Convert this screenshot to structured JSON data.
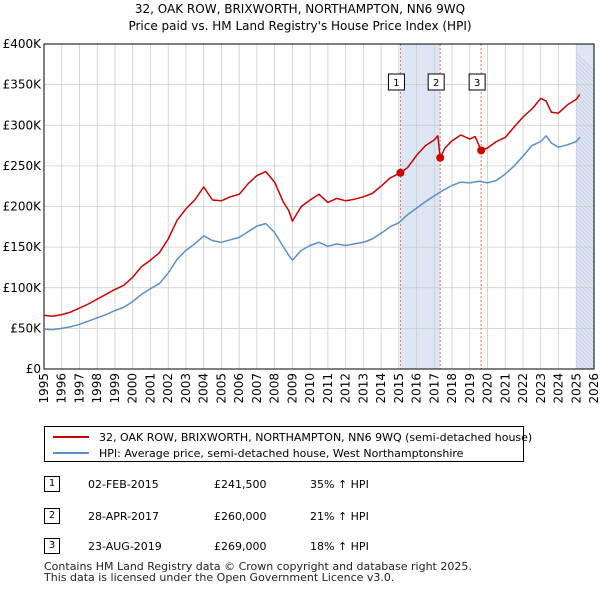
{
  "title_line1": "32, OAK ROW, BRIXWORTH, NORTHAMPTON, NN6 9WQ",
  "title_line2": "Price paid vs. HM Land Registry's House Price Index (HPI)",
  "colors": {
    "property": "#cc0000",
    "hpi": "#5b8fcb",
    "shade": "#dde6f5",
    "grid": "#cccccc",
    "marker_line": "#e86b6b"
  },
  "chart_data": {
    "type": "line",
    "xlim": [
      1995,
      2026
    ],
    "ylim": [
      0,
      400000
    ],
    "x_ticks": [
      1995,
      1996,
      1997,
      1998,
      1999,
      2000,
      2001,
      2002,
      2003,
      2004,
      2005,
      2006,
      2007,
      2008,
      2009,
      2010,
      2011,
      2012,
      2013,
      2014,
      2015,
      2016,
      2017,
      2018,
      2019,
      2020,
      2021,
      2022,
      2023,
      2024,
      2025,
      2026
    ],
    "y_ticks": [
      0,
      50000,
      100000,
      150000,
      200000,
      250000,
      300000,
      350000,
      400000
    ],
    "y_tick_labels": [
      "£0",
      "£50K",
      "£100K",
      "£150K",
      "£200K",
      "£250K",
      "£300K",
      "£350K",
      "£400K"
    ],
    "shaded_ranges": [
      [
        2015.09,
        2017.33
      ],
      [
        2019.64,
        2019.64
      ],
      [
        2025.0,
        2026.0
      ]
    ],
    "series": [
      {
        "name": "32, OAK ROW, BRIXWORTH, NORTHAMPTON, NN6 9WQ (semi-detached house)",
        "color": "#cc0000",
        "x": [
          1995.0,
          1995.5,
          1996.0,
          1996.5,
          1997.0,
          1997.5,
          1998.0,
          1998.5,
          1999.0,
          1999.5,
          2000.0,
          2000.5,
          2001.0,
          2001.5,
          2002.0,
          2002.5,
          2003.0,
          2003.5,
          2004.0,
          2004.5,
          2005.0,
          2005.5,
          2006.0,
          2006.5,
          2007.0,
          2007.5,
          2008.0,
          2008.5,
          2008.8,
          2009.0,
          2009.5,
          2010.0,
          2010.5,
          2011.0,
          2011.5,
          2012.0,
          2012.5,
          2013.0,
          2013.5,
          2014.0,
          2014.5,
          2015.09,
          2015.5,
          2016.0,
          2016.5,
          2017.0,
          2017.2,
          2017.33,
          2017.6,
          2018.0,
          2018.5,
          2019.0,
          2019.3,
          2019.64,
          2020.0,
          2020.5,
          2021.0,
          2021.5,
          2022.0,
          2022.5,
          2023.0,
          2023.3,
          2023.6,
          2024.0,
          2024.5,
          2025.0,
          2025.2
        ],
        "values": [
          66000,
          65000,
          67000,
          70000,
          75000,
          80000,
          86000,
          92000,
          98000,
          103000,
          113000,
          126000,
          134000,
          143000,
          160000,
          183000,
          197000,
          208000,
          224000,
          208000,
          207000,
          212000,
          215000,
          228000,
          238000,
          243000,
          230000,
          205000,
          195000,
          182000,
          200000,
          208000,
          215000,
          205000,
          210000,
          207000,
          209000,
          212000,
          216000,
          225000,
          235000,
          241500,
          248000,
          263000,
          275000,
          282000,
          287000,
          260000,
          272000,
          281000,
          288000,
          283000,
          286000,
          269000,
          272000,
          280000,
          285000,
          298000,
          310000,
          320000,
          333000,
          330000,
          316000,
          315000,
          325000,
          332000,
          338000
        ]
      },
      {
        "name": "HPI: Average price, semi-detached house, West Northamptonshire",
        "color": "#5b8fcb",
        "x": [
          1995.0,
          1995.5,
          1996.0,
          1996.5,
          1997.0,
          1997.5,
          1998.0,
          1998.5,
          1999.0,
          1999.5,
          2000.0,
          2000.5,
          2001.0,
          2001.5,
          2002.0,
          2002.5,
          2003.0,
          2003.5,
          2004.0,
          2004.5,
          2005.0,
          2005.5,
          2006.0,
          2006.5,
          2007.0,
          2007.5,
          2008.0,
          2008.5,
          2008.8,
          2009.0,
          2009.5,
          2010.0,
          2010.5,
          2011.0,
          2011.5,
          2012.0,
          2012.5,
          2013.0,
          2013.5,
          2014.0,
          2014.5,
          2015.0,
          2015.5,
          2016.0,
          2016.5,
          2017.0,
          2017.5,
          2018.0,
          2018.5,
          2019.0,
          2019.5,
          2020.0,
          2020.5,
          2021.0,
          2021.5,
          2022.0,
          2022.5,
          2023.0,
          2023.3,
          2023.6,
          2024.0,
          2024.5,
          2025.0,
          2025.2
        ],
        "values": [
          49000,
          48500,
          50000,
          52000,
          55000,
          59000,
          63000,
          67000,
          72000,
          76000,
          83000,
          92000,
          99000,
          105000,
          118000,
          135000,
          146000,
          154000,
          164000,
          158000,
          156000,
          159000,
          162000,
          169000,
          176000,
          179000,
          168000,
          150000,
          140000,
          134000,
          146000,
          152000,
          156000,
          151000,
          154000,
          152000,
          154000,
          156000,
          160000,
          167000,
          175000,
          180000,
          190000,
          198000,
          206000,
          213000,
          220000,
          226000,
          230000,
          229000,
          231000,
          229000,
          232000,
          240000,
          250000,
          262000,
          275000,
          280000,
          287000,
          278000,
          273000,
          276000,
          280000,
          285000
        ]
      }
    ],
    "sales": [
      {
        "label": "1",
        "x": 2015.09,
        "value": 241500
      },
      {
        "label": "2",
        "x": 2017.33,
        "value": 260000
      },
      {
        "label": "3",
        "x": 2019.64,
        "value": 269000
      }
    ]
  },
  "legend": {
    "property_label": "32, OAK ROW, BRIXWORTH, NORTHAMPTON, NN6 9WQ (semi-detached house)",
    "hpi_label": "HPI: Average price, semi-detached house, West Northamptonshire"
  },
  "sales_table": [
    {
      "num": "1",
      "date": "02-FEB-2015",
      "price": "£241,500",
      "delta": "35% ↑ HPI"
    },
    {
      "num": "2",
      "date": "28-APR-2017",
      "price": "£260,000",
      "delta": "21% ↑ HPI"
    },
    {
      "num": "3",
      "date": "23-AUG-2019",
      "price": "£269,000",
      "delta": "18% ↑ HPI"
    }
  ],
  "footer": {
    "line1": "Contains HM Land Registry data © Crown copyright and database right 2025.",
    "line2": "This data is licensed under the Open Government Licence v3.0."
  }
}
